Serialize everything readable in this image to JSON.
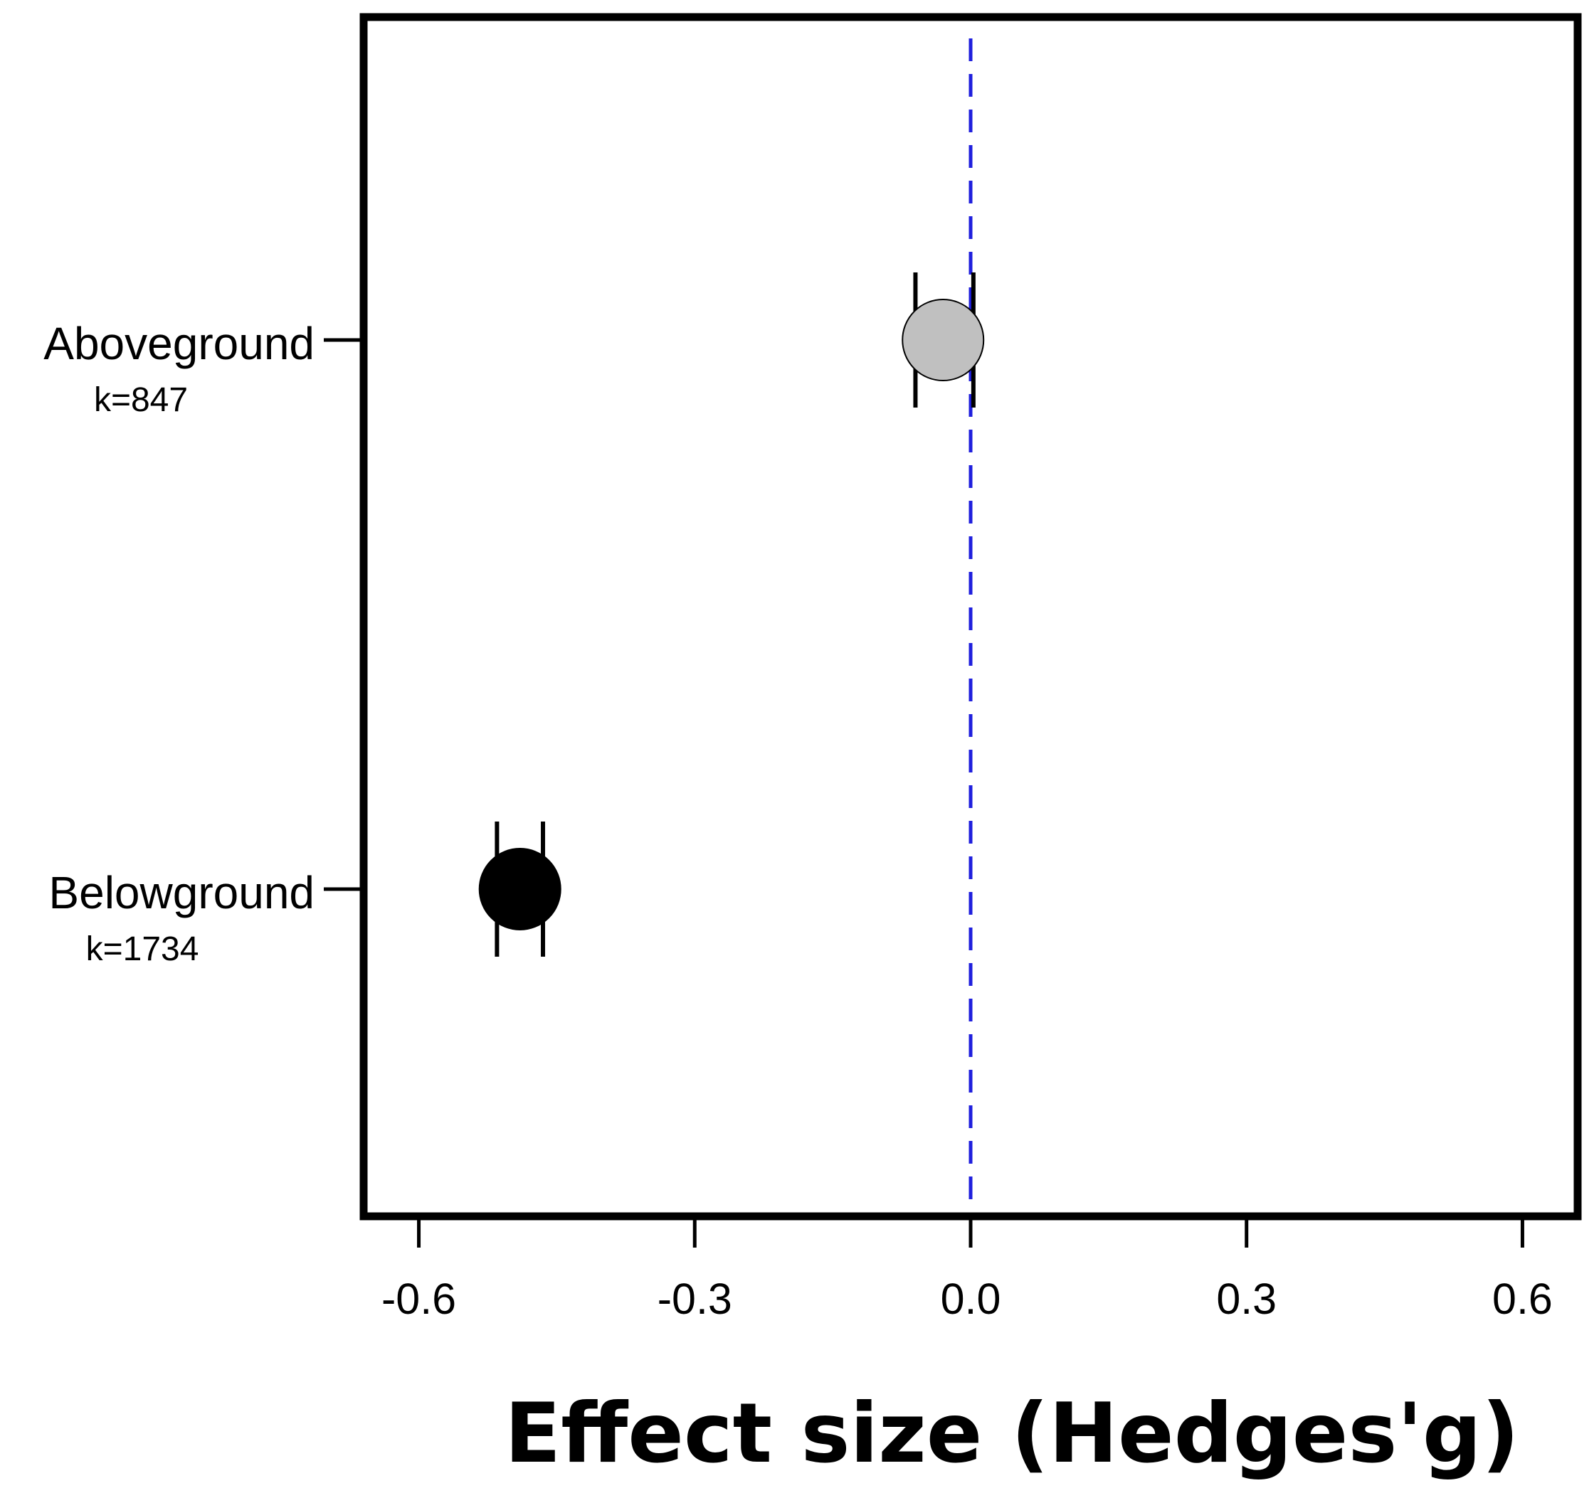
{
  "chart_data": {
    "type": "scatter",
    "xlabel": "Effect size (Hedges'g)",
    "xlim": [
      -0.66,
      0.66
    ],
    "x_ticks": [
      -0.6,
      -0.3,
      0.0,
      0.3,
      0.6
    ],
    "x_tick_labels": [
      "-0.6",
      "-0.3",
      "0.0",
      "0.3",
      "0.6"
    ],
    "reference_line": {
      "x": 0.0,
      "color": "#1f1fdd",
      "style": "dashed"
    },
    "grid": false,
    "legend": "none",
    "categories": [
      {
        "label": "Aboveground",
        "k_label": "k=847",
        "value": -0.03,
        "ci": [
          -0.06,
          0.003
        ],
        "color": "#c0c0c0"
      },
      {
        "label": "Belowground",
        "k_label": "k=1734",
        "value": -0.49,
        "ci": [
          -0.515,
          -0.465
        ],
        "color": "#000000"
      }
    ]
  }
}
